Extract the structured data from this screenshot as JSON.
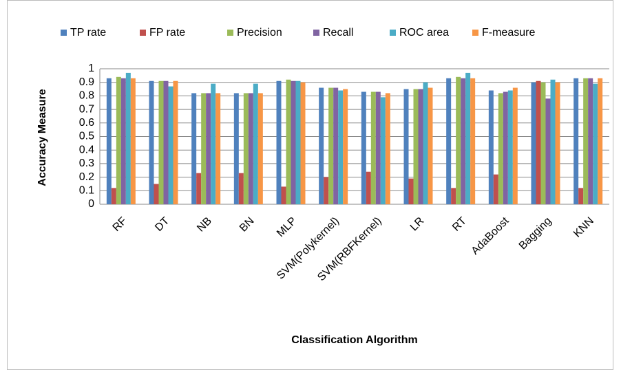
{
  "chart_data": {
    "type": "bar",
    "x_label": "Classification  Algorithm",
    "y_label": "Accuracy  Measure",
    "categories": [
      "RF",
      "DT",
      "NB",
      "BN",
      "MLP",
      "SVM(Polykernel)",
      "SVM(RBFKernel)",
      "LR",
      "RT",
      "AdaBoost",
      "Bagging",
      "KNN"
    ],
    "series": [
      {
        "name": "TP rate",
        "color": "#4f81bd",
        "values": [
          0.93,
          0.91,
          0.82,
          0.82,
          0.91,
          0.86,
          0.83,
          0.85,
          0.93,
          0.84,
          0.9,
          0.93
        ]
      },
      {
        "name": "FP rate",
        "color": "#c0504d",
        "values": [
          0.12,
          0.15,
          0.23,
          0.23,
          0.13,
          0.2,
          0.24,
          0.19,
          0.12,
          0.22,
          0.91,
          0.12
        ]
      },
      {
        "name": "Precision",
        "color": "#9bbb59",
        "values": [
          0.94,
          0.91,
          0.82,
          0.82,
          0.92,
          0.86,
          0.83,
          0.85,
          0.94,
          0.82,
          0.9,
          0.93
        ]
      },
      {
        "name": "Recall",
        "color": "#8064a2",
        "values": [
          0.93,
          0.91,
          0.82,
          0.82,
          0.91,
          0.86,
          0.83,
          0.85,
          0.93,
          0.83,
          0.78,
          0.93
        ]
      },
      {
        "name": "ROC area",
        "color": "#4bacc6",
        "values": [
          0.97,
          0.87,
          0.89,
          0.89,
          0.91,
          0.84,
          0.79,
          0.9,
          0.97,
          0.84,
          0.92,
          0.89
        ]
      },
      {
        "name": "F-measure",
        "color": "#f79646",
        "values": [
          0.93,
          0.91,
          0.82,
          0.82,
          0.9,
          0.85,
          0.82,
          0.86,
          0.93,
          0.86,
          0.9,
          0.93
        ]
      }
    ],
    "ylim": [
      0,
      1
    ],
    "yticks": [
      0,
      0.1,
      0.2,
      0.3,
      0.4,
      0.5,
      0.6,
      0.7,
      0.8,
      0.9,
      1
    ],
    "grid": true
  }
}
